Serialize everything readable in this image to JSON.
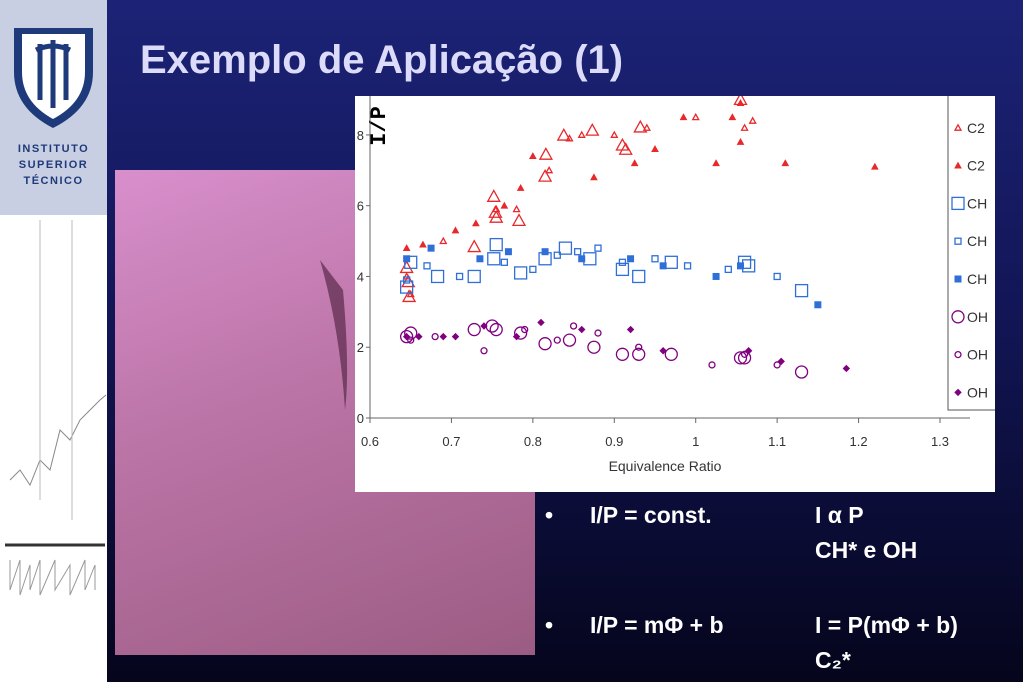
{
  "header": {
    "title": "Exemplo de Aplicação (1)"
  },
  "logo": {
    "lines": [
      "INSTITUTO",
      "SUPERIOR",
      "TÉCNICO"
    ]
  },
  "chart_data": {
    "type": "scatter",
    "xlabel": "Equivalence Ratio",
    "ylabel": "I/P",
    "xlim": [
      0.6,
      1.3
    ],
    "xticks": [
      0.6,
      0.7,
      0.8,
      0.9,
      1,
      1.1,
      1.2,
      1.3
    ],
    "ylim": [
      0,
      9.1
    ],
    "yticks": [
      0,
      2,
      4,
      6,
      8
    ],
    "series": [
      {
        "name": "C2",
        "color": "#e8282b",
        "marker": "triangle-large-open",
        "x": [
          0.645,
          0.647,
          0.648,
          0.728,
          0.752,
          0.754,
          0.755,
          0.783,
          0.815,
          0.816,
          0.838,
          0.873,
          0.91,
          0.914,
          0.932,
          1.055
        ],
        "values": [
          4.25,
          3.85,
          3.43,
          4.84,
          6.26,
          5.81,
          5.67,
          5.58,
          6.83,
          7.45,
          7.99,
          8.13,
          7.71,
          7.59,
          8.22,
          9.0
        ]
      },
      {
        "name": "C2",
        "color": "#e8282b",
        "marker": "triangle-small-open",
        "x": [
          0.645,
          0.65,
          0.69,
          0.755,
          0.78,
          0.82,
          0.845,
          0.86,
          0.9,
          0.94,
          1.0,
          1.06,
          1.07
        ],
        "values": [
          4.0,
          3.5,
          5.0,
          5.9,
          5.9,
          7.0,
          7.9,
          8.0,
          8.0,
          8.2,
          8.5,
          8.2,
          8.4
        ]
      },
      {
        "name": "C2",
        "color": "#e8282b",
        "marker": "triangle-small-filled",
        "x": [
          0.645,
          0.665,
          0.705,
          0.73,
          0.765,
          0.785,
          0.8,
          0.875,
          0.925,
          0.95,
          0.985,
          1.025,
          1.045,
          1.055,
          1.055,
          1.11,
          1.22
        ],
        "values": [
          4.8,
          4.9,
          5.3,
          5.5,
          6.0,
          6.5,
          7.4,
          6.8,
          7.2,
          7.6,
          8.5,
          7.2,
          8.5,
          7.8,
          8.9,
          7.2,
          7.1
        ]
      },
      {
        "name": "CH",
        "color": "#2f6fd8",
        "marker": "square-large-open",
        "x": [
          0.645,
          0.65,
          0.683,
          0.728,
          0.752,
          0.755,
          0.785,
          0.815,
          0.84,
          0.87,
          0.91,
          0.93,
          0.97,
          1.06,
          1.065,
          1.13
        ],
        "values": [
          3.7,
          4.4,
          4.0,
          4.0,
          4.5,
          4.9,
          4.1,
          4.5,
          4.8,
          4.5,
          4.2,
          4.0,
          4.4,
          4.4,
          4.3,
          3.6
        ]
      },
      {
        "name": "CH",
        "color": "#2f6fd8",
        "marker": "square-small-open",
        "x": [
          0.645,
          0.67,
          0.71,
          0.765,
          0.8,
          0.83,
          0.855,
          0.88,
          0.91,
          0.95,
          0.99,
          1.04,
          1.1
        ],
        "values": [
          3.9,
          4.3,
          4.0,
          4.4,
          4.2,
          4.6,
          4.7,
          4.8,
          4.4,
          4.5,
          4.3,
          4.2,
          4.0
        ]
      },
      {
        "name": "CH",
        "color": "#2f6fd8",
        "marker": "square-small-filled",
        "x": [
          0.645,
          0.675,
          0.735,
          0.77,
          0.815,
          0.86,
          0.92,
          0.96,
          1.025,
          1.055,
          1.15
        ],
        "values": [
          4.5,
          4.8,
          4.5,
          4.7,
          4.7,
          4.5,
          4.5,
          4.3,
          4.0,
          4.3,
          3.2
        ]
      },
      {
        "name": "OH",
        "color": "#800080",
        "marker": "circle-large-open",
        "x": [
          0.645,
          0.65,
          0.728,
          0.75,
          0.755,
          0.785,
          0.815,
          0.845,
          0.875,
          0.91,
          0.93,
          0.97,
          1.055,
          1.06,
          1.13
        ],
        "values": [
          2.3,
          2.4,
          2.5,
          2.6,
          2.5,
          2.4,
          2.1,
          2.2,
          2.0,
          1.8,
          1.8,
          1.8,
          1.7,
          1.7,
          1.3
        ]
      },
      {
        "name": "OH",
        "color": "#800080",
        "marker": "circle-small-open",
        "x": [
          0.65,
          0.68,
          0.74,
          0.79,
          0.83,
          0.85,
          0.88,
          0.93,
          1.02,
          1.06,
          1.1
        ],
        "values": [
          2.2,
          2.3,
          1.9,
          2.5,
          2.2,
          2.6,
          2.4,
          2.0,
          1.5,
          1.8,
          1.5
        ]
      },
      {
        "name": "OH",
        "color": "#800080",
        "marker": "diamond-small-filled",
        "x": [
          0.645,
          0.66,
          0.69,
          0.705,
          0.74,
          0.78,
          0.81,
          0.86,
          0.92,
          0.96,
          1.065,
          1.105,
          1.185
        ],
        "values": [
          2.3,
          2.3,
          2.3,
          2.3,
          2.6,
          2.3,
          2.7,
          2.5,
          2.5,
          1.9,
          1.9,
          1.6,
          1.4
        ]
      }
    ]
  },
  "bullets": [
    {
      "bullet": "•",
      "left": "I/P = const.",
      "right": [
        "I α P",
        "CH* e OH"
      ]
    },
    {
      "bullet": "•",
      "left": "I/P = mΦ + b",
      "right": [
        "I = P(mΦ + b)",
        "C₂*"
      ]
    }
  ]
}
